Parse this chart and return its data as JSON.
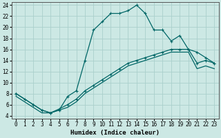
{
  "xlabel": "Humidex (Indice chaleur)",
  "xlim": [
    -0.5,
    23.5
  ],
  "ylim": [
    3.5,
    24.5
  ],
  "yticks": [
    4,
    6,
    8,
    10,
    12,
    14,
    16,
    18,
    20,
    22,
    24
  ],
  "xticks": [
    0,
    1,
    2,
    3,
    4,
    5,
    6,
    7,
    8,
    9,
    10,
    11,
    12,
    13,
    14,
    15,
    16,
    17,
    18,
    19,
    20,
    21,
    22,
    23
  ],
  "background_color": "#cce8e4",
  "grid_color": "#aacfcc",
  "line_color": "#006666",
  "curve1_x": [
    0,
    1,
    2,
    3,
    4,
    5,
    6,
    7,
    8,
    9,
    10,
    11,
    12,
    13,
    14,
    15,
    16,
    17,
    18,
    19,
    20,
    21,
    22,
    23
  ],
  "curve1_y": [
    8,
    7,
    6,
    5,
    4.5,
    5,
    7.5,
    8.5,
    14,
    19.5,
    21,
    22.5,
    22.5,
    23,
    24,
    22.5,
    19.5,
    19.5,
    17.5,
    18.5,
    16,
    15.5,
    14.5,
    13.5
  ],
  "curve2_x": [
    0,
    2,
    3,
    4,
    5,
    6,
    7,
    8,
    9,
    10,
    11,
    12,
    13,
    14,
    15,
    16,
    17,
    18,
    19,
    20,
    21,
    22,
    23
  ],
  "curve2_y": [
    8,
    6,
    5,
    4.5,
    5.2,
    6,
    7,
    8.5,
    9.5,
    10.5,
    11.5,
    12.5,
    13.5,
    14,
    14.5,
    15,
    15.5,
    16,
    16,
    16,
    13.5,
    14,
    13.5
  ],
  "curve3_x": [
    0,
    2,
    3,
    4,
    5,
    6,
    7,
    8,
    9,
    10,
    11,
    12,
    13,
    14,
    15,
    16,
    17,
    18,
    19,
    20,
    21,
    22,
    23
  ],
  "curve3_y": [
    7.5,
    5.5,
    4.5,
    4.5,
    5,
    5.5,
    6.5,
    8,
    9,
    10,
    11,
    12,
    13,
    13.5,
    14,
    14.5,
    15,
    15.5,
    15.5,
    15.5,
    12.5,
    13,
    12.5
  ]
}
